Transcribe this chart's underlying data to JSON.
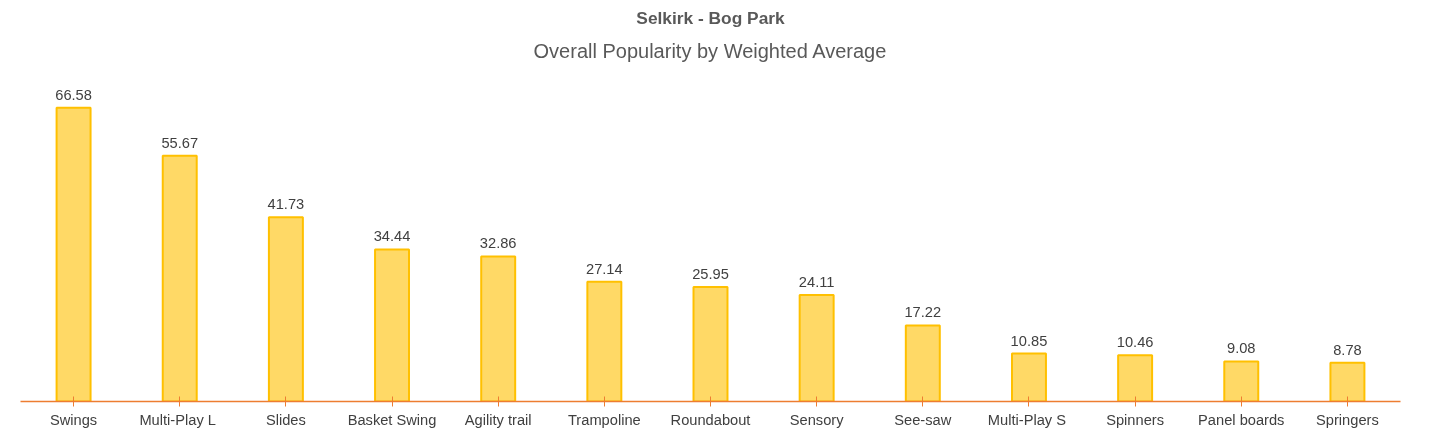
{
  "chart_data": {
    "type": "bar",
    "title": "Selkirk - Bog Park",
    "subtitle": "Overall Popularity by Weighted Average",
    "categories": [
      "Swings",
      "Multi-Play  L",
      "Slides",
      "Basket Swing",
      "Agility trail",
      "Trampoline",
      "Roundabout",
      "Sensory",
      "See-saw",
      "Multi-Play  S",
      "Spinners",
      "Panel boards",
      "Springers"
    ],
    "values": [
      66.58,
      55.67,
      41.73,
      34.44,
      32.86,
      27.14,
      25.95,
      24.11,
      17.22,
      10.85,
      10.46,
      9.08,
      8.78
    ],
    "color": "#ffd966",
    "data_labels": true,
    "grid": false
  }
}
